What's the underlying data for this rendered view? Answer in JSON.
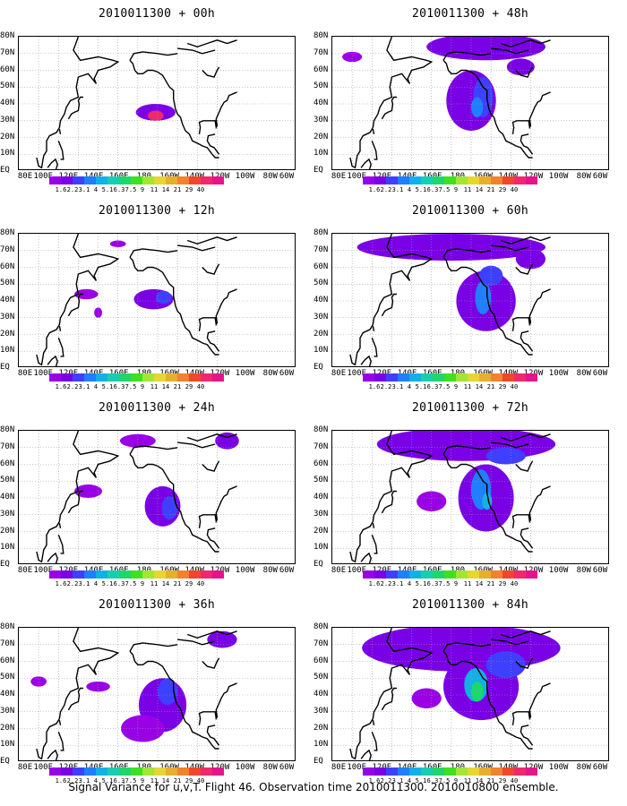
{
  "caption": "Signal Variance for u,v,T. Flight 46. Observation time 2010011300. 2010010800 ensemble.",
  "x_ticks": [
    "80E",
    "100E",
    "120E",
    "140E",
    "160E",
    "180",
    "160W",
    "140W",
    "120W",
    "100W",
    "80W",
    "60W"
  ],
  "y_ticks": [
    "80N",
    "70N",
    "60N",
    "50N",
    "40N",
    "30N",
    "20N",
    "10N",
    "EQ"
  ],
  "colorbar": {
    "labels": [
      "1.6",
      "2.2",
      "3.1",
      "4",
      "5.1",
      "6.3",
      "7.5",
      "9",
      "11",
      "14",
      "21",
      "29",
      "40"
    ],
    "colors": [
      "#9a00e6",
      "#7a00e6",
      "#3f3fff",
      "#1f7fff",
      "#12b0e6",
      "#17cfb0",
      "#1fd66a",
      "#3fe01f",
      "#a0e632",
      "#e6d632",
      "#e6af2d",
      "#f2822d",
      "#f0462d",
      "#f0286e",
      "#e6148c"
    ]
  },
  "panels": [
    {
      "title": "2010011300 + 00h",
      "stage": 0
    },
    {
      "title": "2010011300 + 12h",
      "stage": 1
    },
    {
      "title": "2010011300 + 24h",
      "stage": 2
    },
    {
      "title": "2010011300 + 36h",
      "stage": 3
    },
    {
      "title": "2010011300 + 48h",
      "stage": 4
    },
    {
      "title": "2010011300 + 60h",
      "stage": 5
    },
    {
      "title": "2010011300 + 72h",
      "stage": 6
    },
    {
      "title": "2010011300 + 84h",
      "stage": 7
    }
  ]
}
